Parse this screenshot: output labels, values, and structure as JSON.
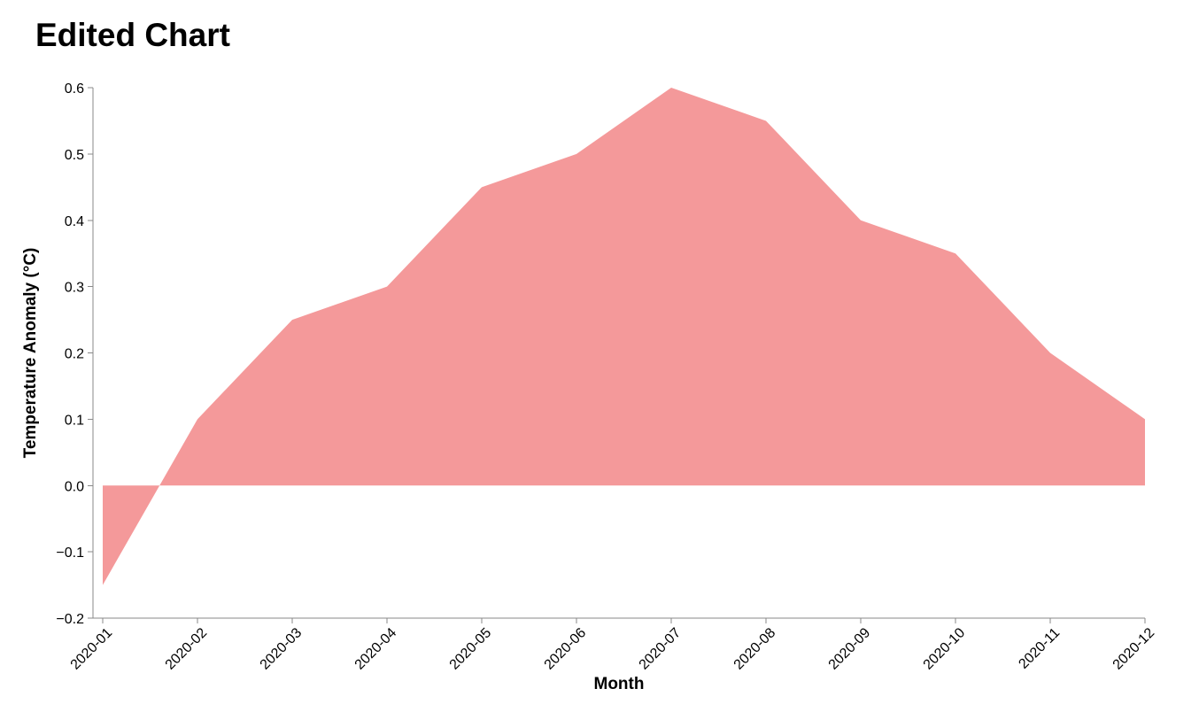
{
  "chart_data": {
    "type": "area",
    "title": "Edited Chart",
    "xlabel": "Month",
    "ylabel": "Temperature Anomaly (°C)",
    "categories": [
      "2020-01",
      "2020-02",
      "2020-03",
      "2020-04",
      "2020-05",
      "2020-06",
      "2020-07",
      "2020-08",
      "2020-09",
      "2020-10",
      "2020-11",
      "2020-12"
    ],
    "values": [
      -0.15,
      0.1,
      0.25,
      0.3,
      0.45,
      0.5,
      0.6,
      0.55,
      0.4,
      0.35,
      0.2,
      0.1
    ],
    "ylim": [
      -0.2,
      0.6
    ],
    "yticks": [
      -0.2,
      -0.1,
      0.0,
      0.1,
      0.2,
      0.3,
      0.4,
      0.5,
      0.6
    ],
    "ytick_labels": [
      "−0.2",
      "−0.1",
      "0.0",
      "0.1",
      "0.2",
      "0.3",
      "0.4",
      "0.5",
      "0.6"
    ],
    "grid": false,
    "legend": "none",
    "area_color": "#f4999a"
  }
}
